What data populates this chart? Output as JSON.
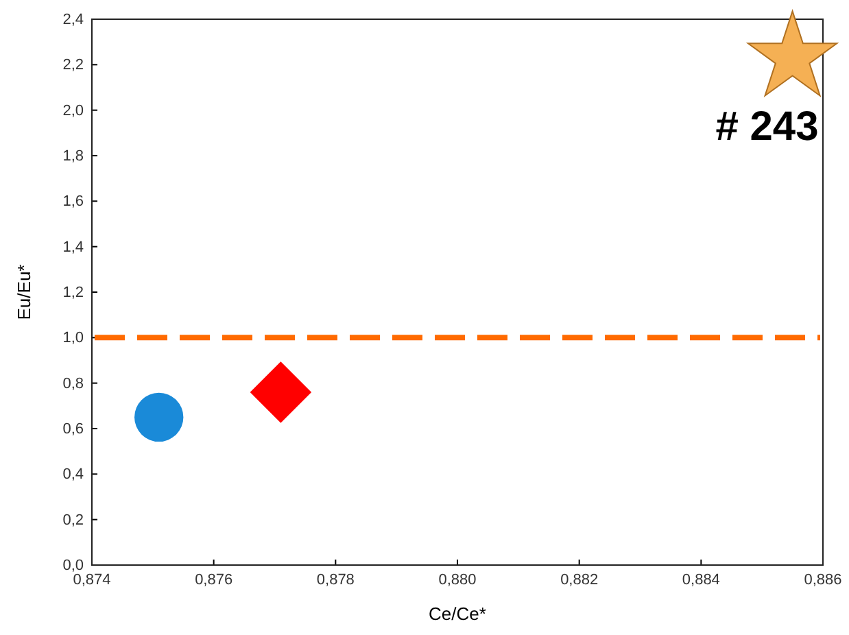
{
  "chart_data": {
    "type": "scatter",
    "xlabel": "Ce/Ce*",
    "ylabel": "Eu/Eu*",
    "xlim": [
      0.874,
      0.886
    ],
    "xticks": [
      {
        "value": 0.874,
        "label": "0,874"
      },
      {
        "value": 0.876,
        "label": "0,876"
      },
      {
        "value": 0.878,
        "label": "0,878"
      },
      {
        "value": 0.88,
        "label": "0,880"
      },
      {
        "value": 0.882,
        "label": "0,882"
      },
      {
        "value": 0.884,
        "label": "0,884"
      },
      {
        "value": 0.886,
        "label": "0,886"
      }
    ],
    "ylim": [
      0,
      2.4
    ],
    "yticks": [
      {
        "value": 0,
        "label": "0,0"
      },
      {
        "value": 0.2,
        "label": "0,2"
      },
      {
        "value": 0.4,
        "label": "0,4"
      },
      {
        "value": 0.6,
        "label": "0,6"
      },
      {
        "value": 0.8,
        "label": "0,8"
      },
      {
        "value": 1,
        "label": "1,0"
      },
      {
        "value": 1.2,
        "label": "1,2"
      },
      {
        "value": 1.4,
        "label": "1,4"
      },
      {
        "value": 1.6,
        "label": "1,6"
      },
      {
        "value": 1.8,
        "label": "1,8"
      },
      {
        "value": 2,
        "label": "2,0"
      },
      {
        "value": 2.2,
        "label": "2,2"
      },
      {
        "value": 2.4,
        "label": "2,4"
      }
    ],
    "grid": false,
    "series": [
      {
        "color": "#1a8ad8",
        "marker": "circle",
        "x": [
          0.8751
        ],
        "values": [
          0.65
        ]
      },
      {
        "color": "#ff0000",
        "marker": "diamond",
        "x": [
          0.8771
        ],
        "values": [
          0.76
        ]
      },
      {
        "color": "#f5b054",
        "marker": "star",
        "x": [
          0.8855
        ],
        "values": [
          2.23
        ]
      }
    ],
    "ref_lines": [
      {
        "axis": "y",
        "value": 1,
        "color": "#ff6a00",
        "line_style": "dashed"
      }
    ],
    "annotations": [
      {
        "text": "# 243",
        "x": 0.8855,
        "y": 2.23
      }
    ]
  }
}
